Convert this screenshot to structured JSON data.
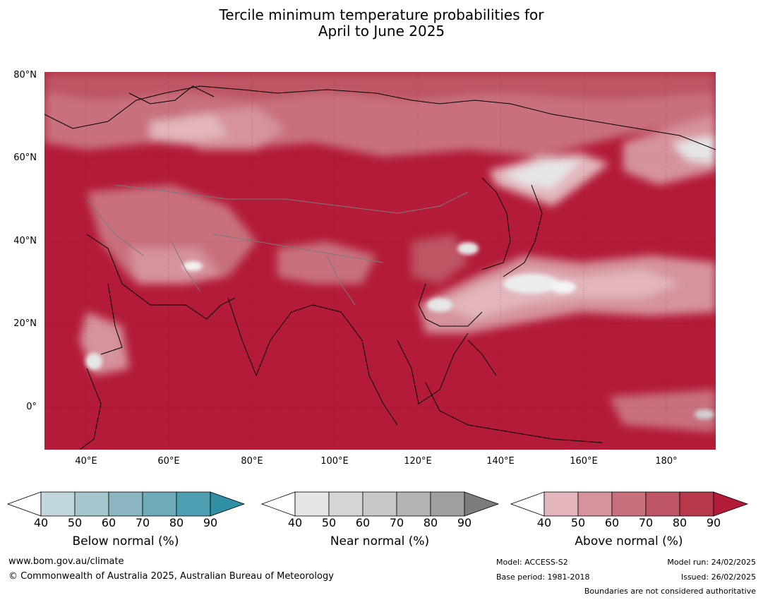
{
  "title": {
    "line1": "Tercile minimum temperature probabilities for",
    "line2": "April to June 2025"
  },
  "map": {
    "lat_labels": [
      "80°N",
      "60°N",
      "40°N",
      "20°N",
      "0°"
    ],
    "lon_labels": [
      "40°E",
      "60°E",
      "80°E",
      "100°E",
      "120°E",
      "140°E",
      "160°E",
      "180°"
    ]
  },
  "legends": [
    {
      "title": "Below normal (%)",
      "ticks": [
        "40",
        "50",
        "60",
        "70",
        "80",
        "90"
      ],
      "colors": [
        "#c2d6dd",
        "#a6c6cd",
        "#8bb6c1",
        "#6eaab8",
        "#4ea0b0",
        "#2f8fa5"
      ]
    },
    {
      "title": "Near normal (%)",
      "ticks": [
        "40",
        "50",
        "60",
        "70",
        "80",
        "90"
      ],
      "colors": [
        "#e6e6e6",
        "#d6d6d6",
        "#c8c8c8",
        "#b4b4b4",
        "#a0a0a0",
        "#7c7c7c"
      ]
    },
    {
      "title": "Above normal (%)",
      "ticks": [
        "40",
        "50",
        "60",
        "70",
        "80",
        "90"
      ],
      "colors": [
        "#e2b6bc",
        "#d6939c",
        "#c8717d",
        "#bd5564",
        "#b7374b",
        "#b31b38"
      ]
    }
  ],
  "footer": {
    "url": "www.bom.gov.au/climate",
    "copyright": "© Commonwealth of Australia 2025, Australian Bureau of Meteorology",
    "model": "Model: ACCESS-S2",
    "base_period": "Base period: 1981-2018",
    "model_run": "Model run: 24/02/2025",
    "issued": "Issued: 26/02/2025",
    "disclaimer": "Boundaries are not considered authoritative"
  }
}
